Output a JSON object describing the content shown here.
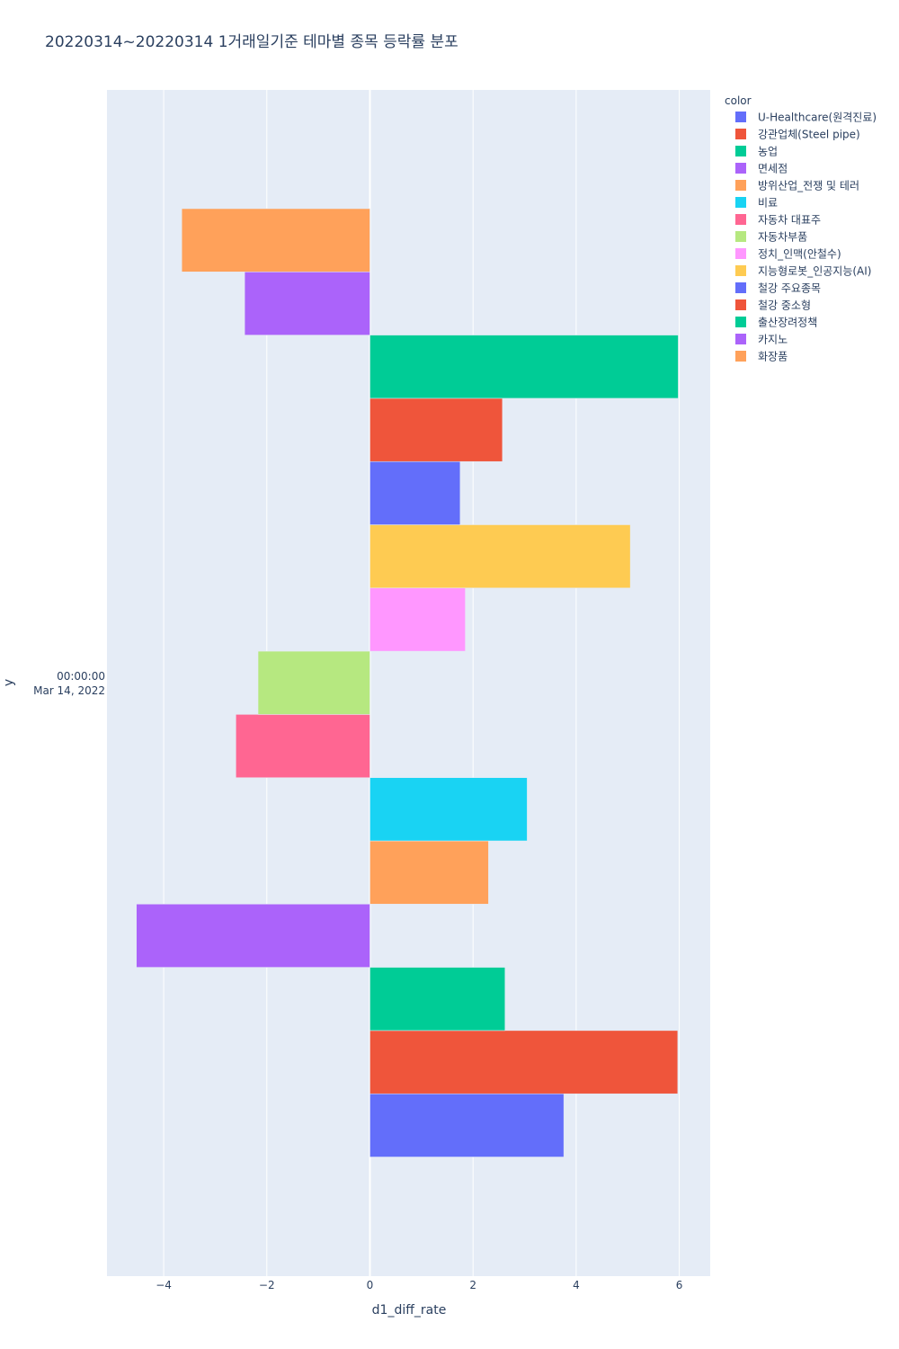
{
  "chart_data": {
    "type": "bar",
    "orientation": "horizontal",
    "barmode": "group",
    "title": "20220314~20220314 1거래일기준 테마별 종목 등락률 분포",
    "xlabel": "d1_diff_rate",
    "ylabel": "y",
    "y_category_label_time": "00:00:00",
    "y_category_label_date": "Mar 14, 2022",
    "xlim": [
      -5.1,
      6.6
    ],
    "x_ticks": [
      -4,
      -2,
      0,
      2,
      4,
      6
    ],
    "x_tick_labels": [
      "−4",
      "−2",
      "0",
      "2",
      "4",
      "6"
    ],
    "grid": true,
    "legend_title": "color",
    "legend_position": "top-right",
    "series": [
      {
        "name": "U-Healthcare(원격진료)",
        "value": 3.76,
        "color": "#636efa"
      },
      {
        "name": "강관업체(Steel pipe)",
        "value": 5.97,
        "color": "#EF553B"
      },
      {
        "name": "농업",
        "value": 2.62,
        "color": "#00cc96"
      },
      {
        "name": "면세점",
        "value": -4.53,
        "color": "#ab63fa"
      },
      {
        "name": "방위산업_전쟁 및 테러",
        "value": 2.3,
        "color": "#FFA15A"
      },
      {
        "name": "비료",
        "value": 3.05,
        "color": "#19d3f3"
      },
      {
        "name": "자동차 대표주",
        "value": -2.6,
        "color": "#FF6692"
      },
      {
        "name": "자동차부품",
        "value": -2.17,
        "color": "#B6E880"
      },
      {
        "name": "정치_인맥(안철수)",
        "value": 1.85,
        "color": "#FF97FF"
      },
      {
        "name": "지능형로봇_인공지능(AI)",
        "value": 5.05,
        "color": "#FECB52"
      },
      {
        "name": "철강 주요종목",
        "value": 1.75,
        "color": "#636efa"
      },
      {
        "name": "철강 중소형",
        "value": 2.57,
        "color": "#EF553B"
      },
      {
        "name": "출산장려정책",
        "value": 5.98,
        "color": "#00cc96"
      },
      {
        "name": "카지노",
        "value": -2.43,
        "color": "#ab63fa"
      },
      {
        "name": "화장품",
        "value": -3.65,
        "color": "#FFA15A"
      }
    ]
  }
}
